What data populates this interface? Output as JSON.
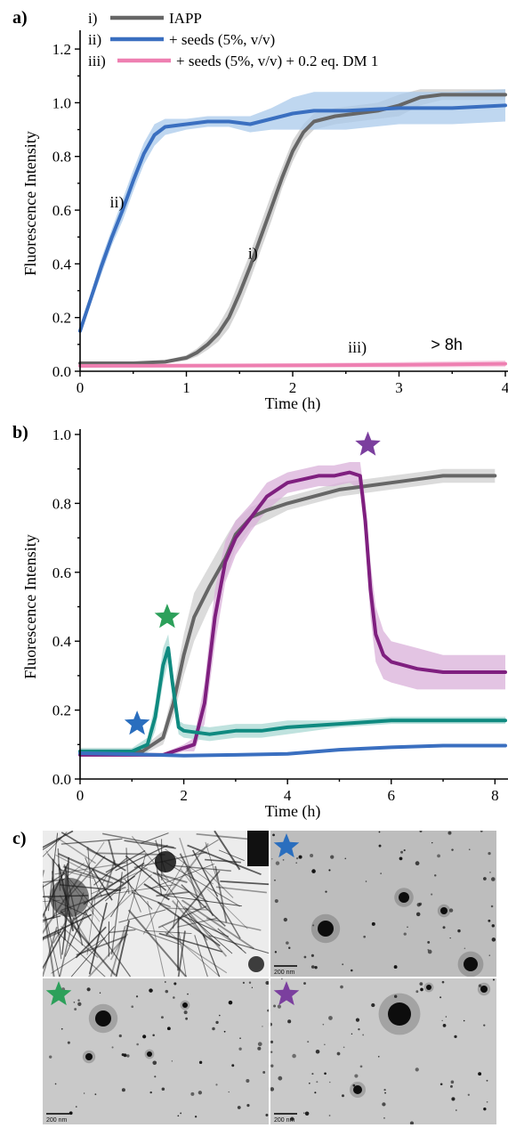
{
  "figure": {
    "panel_labels": {
      "a": "a)",
      "b": "b)",
      "c": "c)"
    }
  },
  "chart_data": [
    {
      "type": "line",
      "panel": "a)",
      "xlabel": "Time (h)",
      "ylabel": "Fluorescence Intensity",
      "xlim": [
        0,
        4
      ],
      "ylim": [
        0,
        1.25
      ],
      "xticks": [
        "0",
        "1",
        "2",
        "3",
        "4"
      ],
      "yticks": [
        "0.0",
        "0.2",
        "0.4",
        "0.6",
        "0.8",
        "1.0",
        "1.2"
      ],
      "legend_placement": "top-left",
      "annotations": [
        {
          "text": "ii)",
          "x": 0.28,
          "y": 0.61
        },
        {
          "text": "i)",
          "x": 1.58,
          "y": 0.42
        },
        {
          "text": "iii)",
          "x": 2.52,
          "y": 0.07
        },
        {
          "text": "> 8h",
          "x": 3.3,
          "y": 0.08
        }
      ],
      "series": [
        {
          "name": "IAPP",
          "marker": "i)",
          "color": "#666666",
          "band_color": "#c8c8c8",
          "x": [
            0,
            0.5,
            0.8,
            1.0,
            1.1,
            1.2,
            1.3,
            1.4,
            1.5,
            1.6,
            1.7,
            1.8,
            1.9,
            2.0,
            2.1,
            2.2,
            2.4,
            2.6,
            2.8,
            3.0,
            3.2,
            3.4,
            3.6,
            3.8,
            4.0
          ],
          "y": [
            0.03,
            0.03,
            0.035,
            0.05,
            0.07,
            0.1,
            0.14,
            0.2,
            0.29,
            0.39,
            0.5,
            0.61,
            0.72,
            0.82,
            0.89,
            0.93,
            0.95,
            0.96,
            0.97,
            0.99,
            1.02,
            1.03,
            1.03,
            1.03,
            1.03
          ],
          "band": [
            0.005,
            0.005,
            0.005,
            0.01,
            0.015,
            0.02,
            0.03,
            0.04,
            0.05,
            0.05,
            0.05,
            0.05,
            0.04,
            0.04,
            0.03,
            0.03,
            0.03,
            0.03,
            0.03,
            0.04,
            0.03,
            0.02,
            0.02,
            0.02,
            0.02
          ]
        },
        {
          "name": "+ seeds (5%, v/v)",
          "marker": "ii)",
          "color": "#3a6fc0",
          "band_color": "#aacaeb",
          "x": [
            0,
            0.1,
            0.2,
            0.3,
            0.4,
            0.5,
            0.6,
            0.7,
            0.8,
            1.0,
            1.2,
            1.4,
            1.6,
            1.8,
            2.0,
            2.2,
            2.5,
            3.0,
            3.5,
            4.0
          ],
          "y": [
            0.15,
            0.27,
            0.39,
            0.5,
            0.6,
            0.71,
            0.81,
            0.88,
            0.91,
            0.92,
            0.93,
            0.93,
            0.92,
            0.94,
            0.96,
            0.97,
            0.97,
            0.98,
            0.98,
            0.99
          ],
          "band": [
            0.01,
            0.02,
            0.03,
            0.03,
            0.04,
            0.04,
            0.04,
            0.04,
            0.03,
            0.02,
            0.02,
            0.02,
            0.03,
            0.04,
            0.06,
            0.07,
            0.07,
            0.06,
            0.06,
            0.06
          ]
        },
        {
          "name": "+ seeds (5%, v/v) + 0.2 eq. DM 1",
          "marker": "iii)",
          "color": "#ee7fb1",
          "band_color": "#f6c3dc",
          "x": [
            0,
            1,
            2,
            3,
            4
          ],
          "y": [
            0.02,
            0.021,
            0.022,
            0.024,
            0.028
          ],
          "band": [
            0.006,
            0.007,
            0.008,
            0.01,
            0.012
          ]
        }
      ]
    },
    {
      "type": "line",
      "panel": "b)",
      "xlabel": "Time (h)",
      "ylabel": "Fluorescence Intensity",
      "xlim": [
        0,
        8.2
      ],
      "ylim": [
        0,
        1.0
      ],
      "xticks": [
        "0",
        "2",
        "4",
        "6",
        "8"
      ],
      "yticks": [
        "0.0",
        "0.2",
        "0.4",
        "0.6",
        "0.8",
        "1.0"
      ],
      "stars": [
        {
          "color": "#2a6ebe",
          "x": 1.1,
          "y": 0.16
        },
        {
          "color": "#2ca05a",
          "x": 1.68,
          "y": 0.47
        },
        {
          "color": "#7b3f9e",
          "x": 5.55,
          "y": 0.97
        }
      ],
      "series": [
        {
          "color": "#666666",
          "band_color": "#cfcfcf",
          "x": [
            0,
            1.2,
            1.6,
            1.8,
            2.0,
            2.2,
            2.5,
            2.8,
            3.0,
            3.3,
            3.6,
            4.0,
            4.5,
            5.0,
            5.5,
            6.0,
            6.5,
            7.0,
            7.5,
            8.0
          ],
          "y": [
            0.08,
            0.08,
            0.12,
            0.22,
            0.36,
            0.47,
            0.56,
            0.64,
            0.71,
            0.76,
            0.78,
            0.8,
            0.82,
            0.84,
            0.85,
            0.86,
            0.87,
            0.88,
            0.88,
            0.88
          ],
          "band": [
            0.01,
            0.01,
            0.02,
            0.04,
            0.06,
            0.07,
            0.06,
            0.06,
            0.04,
            0.03,
            0.03,
            0.02,
            0.02,
            0.02,
            0.02,
            0.02,
            0.02,
            0.02,
            0.02,
            0.02
          ]
        },
        {
          "color": "#7f1f7f",
          "band_color": "#d9b0d9",
          "x": [
            0,
            1.6,
            2.0,
            2.2,
            2.4,
            2.6,
            2.8,
            3.0,
            3.3,
            3.6,
            4.0,
            4.3,
            4.6,
            4.9,
            5.2,
            5.4,
            5.5,
            5.6,
            5.7,
            5.85,
            6.0,
            6.5,
            7.0,
            7.5,
            8.2
          ],
          "y": [
            0.07,
            0.07,
            0.09,
            0.1,
            0.22,
            0.47,
            0.63,
            0.7,
            0.76,
            0.82,
            0.86,
            0.87,
            0.88,
            0.88,
            0.89,
            0.88,
            0.75,
            0.55,
            0.42,
            0.36,
            0.34,
            0.32,
            0.31,
            0.31,
            0.31
          ],
          "band": [
            0.005,
            0.005,
            0.01,
            0.02,
            0.06,
            0.08,
            0.06,
            0.05,
            0.04,
            0.04,
            0.03,
            0.03,
            0.03,
            0.03,
            0.03,
            0.04,
            0.06,
            0.08,
            0.08,
            0.07,
            0.06,
            0.06,
            0.05,
            0.05,
            0.05
          ]
        },
        {
          "color": "#0f8a80",
          "band_color": "#a9d8d3",
          "x": [
            0,
            1.0,
            1.3,
            1.45,
            1.6,
            1.7,
            1.78,
            1.9,
            2.0,
            2.5,
            3.0,
            3.5,
            4.0,
            5.0,
            6.0,
            7.0,
            8.2
          ],
          "y": [
            0.08,
            0.08,
            0.1,
            0.18,
            0.33,
            0.38,
            0.28,
            0.15,
            0.14,
            0.13,
            0.14,
            0.14,
            0.15,
            0.16,
            0.17,
            0.17,
            0.17
          ],
          "band": [
            0.01,
            0.01,
            0.02,
            0.04,
            0.05,
            0.04,
            0.04,
            0.02,
            0.02,
            0.02,
            0.02,
            0.02,
            0.02,
            0.01,
            0.01,
            0.01,
            0.01
          ]
        },
        {
          "color": "#3a6fc0",
          "band_color": "#b9cfe9",
          "x": [
            0,
            1.0,
            2.0,
            3.0,
            4.0,
            5.0,
            6.0,
            7.0,
            8.2
          ],
          "y": [
            0.075,
            0.072,
            0.068,
            0.07,
            0.073,
            0.085,
            0.092,
            0.097,
            0.097
          ],
          "band": [
            0.004,
            0.004,
            0.004,
            0.004,
            0.004,
            0.004,
            0.004,
            0.004,
            0.004
          ]
        }
      ]
    }
  ],
  "micrographs": {
    "panel": "c)",
    "scale_label": "200 nm",
    "tiles": [
      {
        "name": "fibrils",
        "star_color": ""
      },
      {
        "name": "blue-star",
        "star_color": "#2a6ebe"
      },
      {
        "name": "green-star",
        "star_color": "#2ca05a"
      },
      {
        "name": "purple-star",
        "star_color": "#7b3f9e"
      }
    ]
  }
}
